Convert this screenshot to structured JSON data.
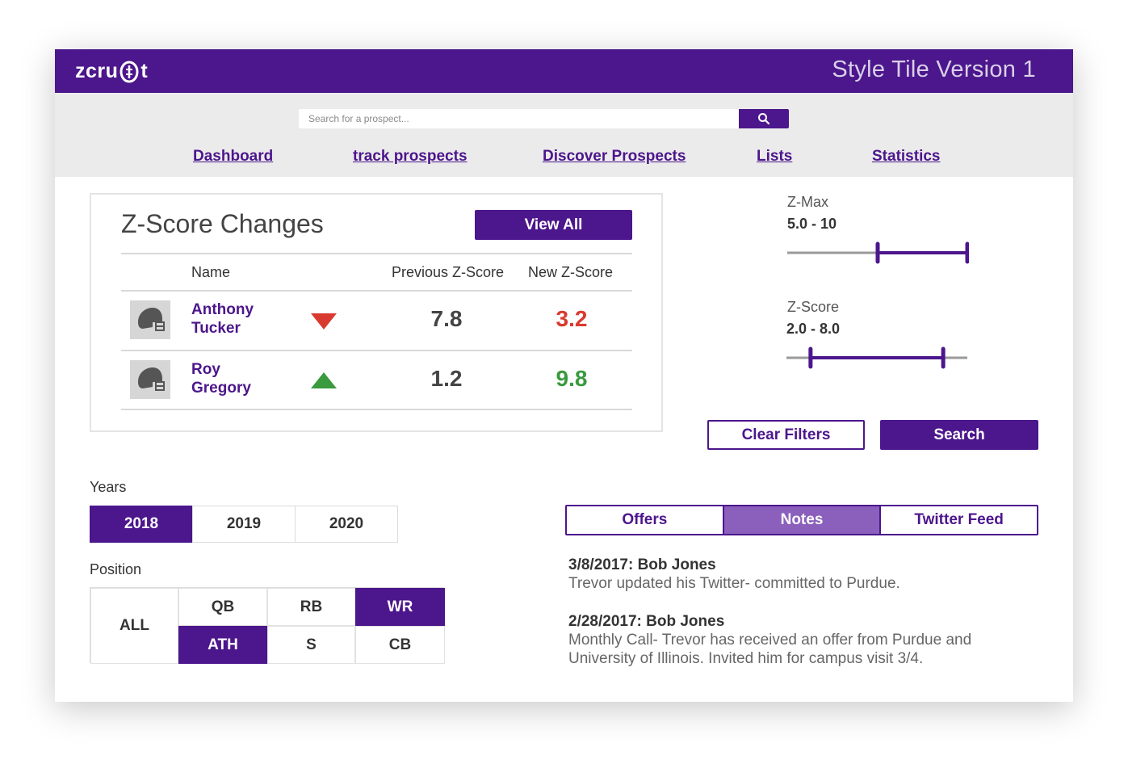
{
  "header": {
    "logo": "zcruit",
    "title": "Style Tile Version 1"
  },
  "search": {
    "placeholder": "Search for a prospect..."
  },
  "nav": {
    "items": [
      "Dashboard",
      "track prospects",
      "Discover Prospects",
      "Lists",
      "Statistics"
    ]
  },
  "zscore_card": {
    "title": "Z-Score Changes",
    "view_all": "View All",
    "columns": {
      "name": "Name",
      "previous": "Previous Z-Score",
      "new": "New Z-Score"
    },
    "rows": [
      {
        "name_first": "Anthony",
        "name_last": "Tucker",
        "trend": "down",
        "previous": "7.8",
        "new": "3.2",
        "new_color": "#d93a2f",
        "arrow_color": "#d93a2f"
      },
      {
        "name_first": "Roy",
        "name_last": "Gregory",
        "trend": "up",
        "previous": "1.2",
        "new": "9.8",
        "new_color": "#3a9a3e",
        "arrow_color": "#3a9a3e"
      }
    ],
    "avatar_icon": "football-helmet-icon"
  },
  "filters": {
    "zmax": {
      "label": "Z-Max",
      "range": "5.0 - 10",
      "low_fraction": 0.5,
      "high_fraction": 1.0
    },
    "zscore": {
      "label": "Z-Score",
      "range": "2.0 - 8.0",
      "low_fraction": 0.13,
      "high_fraction": 0.87
    },
    "clear_label": "Clear Filters",
    "search_label": "Search"
  },
  "years": {
    "label": "Years",
    "options": [
      "2018",
      "2019",
      "2020"
    ],
    "selected": "2018"
  },
  "position": {
    "label": "Position",
    "all": "ALL",
    "options": [
      "QB",
      "RB",
      "WR",
      "ATH",
      "S",
      "CB"
    ],
    "selected": [
      "WR",
      "ATH"
    ]
  },
  "tabs": {
    "items": [
      "Offers",
      "Notes",
      "Twitter Feed"
    ],
    "selected": "Notes"
  },
  "notes": [
    {
      "heading": "3/8/2017: Bob Jones",
      "body": "Trevor updated his Twitter- committed to Purdue."
    },
    {
      "heading": "2/28/2017: Bob Jones",
      "body_line1": "Monthly Call- Trevor has received an offer from Purdue and",
      "body_line2": "University of Illinois. Invited him for campus visit 3/4."
    }
  ],
  "colors": {
    "brand": "#4c168c",
    "tab_active": "#8a60bc",
    "band": "#ebebeb"
  }
}
